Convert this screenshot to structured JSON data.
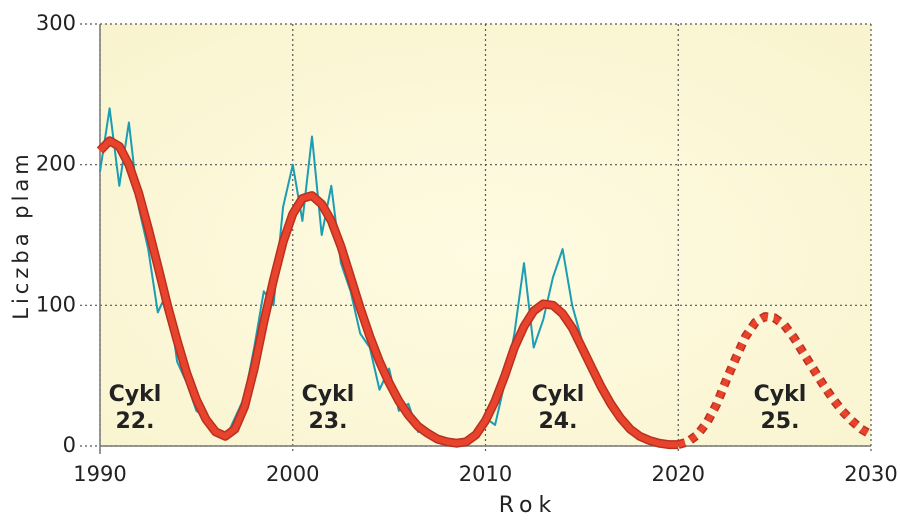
{
  "chart_data": {
    "type": "line",
    "xlabel": "Rok",
    "ylabel": "Liczba plam",
    "xlim": [
      1990,
      2030
    ],
    "xticks": [
      1990,
      2000,
      2010,
      2020,
      2030
    ],
    "ylim": [
      0,
      300
    ],
    "yticks": [
      0,
      100,
      200,
      300
    ],
    "grid": true,
    "series": [
      {
        "color": "#1b9db3",
        "style": "solid",
        "x": [
          1990,
          1990.5,
          1991,
          1991.5,
          1992,
          1992.5,
          1993,
          1993.5,
          1994,
          1994.5,
          1995,
          1995.5,
          1996,
          1996.5,
          1997,
          1997.5,
          1998,
          1998.5,
          1999,
          1999.5,
          2000,
          2000.5,
          2001,
          2001.5,
          2002,
          2002.5,
          2003,
          2003.5,
          2004,
          2004.5,
          2005,
          2005.5,
          2006,
          2006.5,
          2007,
          2007.5,
          2008,
          2008.5,
          2009,
          2009.5,
          2010,
          2010.5,
          2011,
          2011.5,
          2012,
          2012.5,
          2013,
          2013.5,
          2014,
          2014.5,
          2015,
          2015.5,
          2016,
          2016.5,
          2017,
          2017.5,
          2018,
          2018.5,
          2019,
          2019.5,
          2020
        ],
        "values": [
          195,
          240,
          185,
          230,
          170,
          140,
          95,
          110,
          60,
          45,
          25,
          20,
          8,
          5,
          20,
          35,
          70,
          110,
          100,
          170,
          200,
          160,
          220,
          150,
          185,
          130,
          110,
          80,
          70,
          40,
          55,
          25,
          30,
          10,
          12,
          4,
          3,
          1,
          2,
          5,
          20,
          15,
          45,
          80,
          130,
          70,
          90,
          120,
          140,
          100,
          75,
          60,
          40,
          35,
          20,
          15,
          8,
          5,
          3,
          2,
          1
        ]
      },
      {
        "color": "#e8432c",
        "style": "solid",
        "x": [
          1990,
          1990.5,
          1991,
          1991.5,
          1992,
          1992.5,
          1993,
          1993.5,
          1994,
          1994.5,
          1995,
          1995.5,
          1996,
          1996.5,
          1997,
          1997.5,
          1998,
          1998.5,
          1999,
          1999.5,
          2000,
          2000.5,
          2001,
          2001.5,
          2002,
          2002.5,
          2003,
          2003.5,
          2004,
          2004.5,
          2005,
          2005.5,
          2006,
          2006.5,
          2007,
          2007.5,
          2008,
          2008.5,
          2009,
          2009.5,
          2010,
          2010.5,
          2011,
          2011.5,
          2012,
          2012.5,
          2013,
          2013.5,
          2014,
          2014.5,
          2015,
          2015.5,
          2016,
          2016.5,
          2017,
          2017.5,
          2018,
          2018.5,
          2019,
          2019.5,
          2020
        ],
        "values": [
          210,
          217,
          213,
          200,
          180,
          155,
          128,
          100,
          75,
          52,
          33,
          19,
          10,
          7,
          12,
          28,
          55,
          88,
          118,
          145,
          165,
          176,
          178,
          172,
          160,
          142,
          120,
          98,
          78,
          60,
          45,
          32,
          22,
          14,
          9,
          5,
          3,
          2,
          3,
          8,
          18,
          32,
          50,
          70,
          85,
          96,
          101,
          100,
          94,
          84,
          70,
          56,
          42,
          30,
          20,
          12,
          7,
          4,
          2,
          1,
          1
        ]
      },
      {
        "color": "#e8432c",
        "style": "dashed",
        "x": [
          2020,
          2020.5,
          2021,
          2021.5,
          2022,
          2022.5,
          2023,
          2023.5,
          2024,
          2024.5,
          2025,
          2025.5,
          2026,
          2026.5,
          2027,
          2027.5,
          2028,
          2028.5,
          2029,
          2029.5,
          2030
        ],
        "values": [
          1,
          3,
          8,
          17,
          30,
          47,
          63,
          78,
          88,
          92,
          91,
          86,
          77,
          66,
          55,
          44,
          34,
          25,
          18,
          12,
          8
        ]
      }
    ],
    "annotations": [
      [
        "Cykl",
        "22."
      ],
      [
        "Cykl",
        "23."
      ],
      [
        "Cykl",
        "24."
      ],
      [
        "Cykl",
        "25."
      ]
    ]
  }
}
